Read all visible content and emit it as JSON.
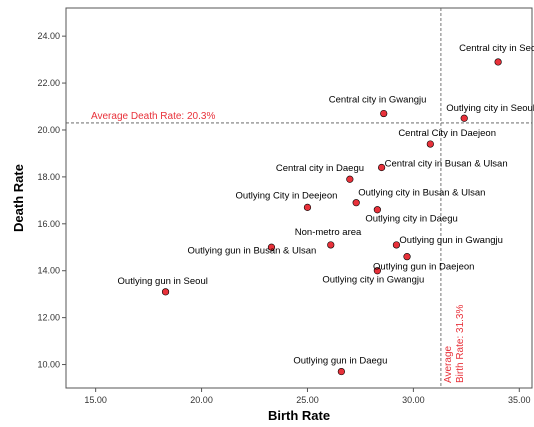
{
  "chart_data": {
    "type": "scatter",
    "xlabel": "Birth Rate",
    "ylabel": "Death Rate",
    "xlim": [
      13.6,
      35.6
    ],
    "ylim": [
      9.0,
      25.2
    ],
    "x_ticks": [
      "15.00",
      "20.00",
      "25.00",
      "30.00",
      "35.00"
    ],
    "y_ticks": [
      "10.00",
      "12.00",
      "14.00",
      "16.00",
      "18.00",
      "20.00",
      "22.00",
      "24.00"
    ],
    "grid": false,
    "marker_color": "#e8313a",
    "reference_color": "#e8313a",
    "points": [
      {
        "label": "Central city in Seoul",
        "x": 34.0,
        "y": 22.9
      },
      {
        "label": "Central city in Gwangju",
        "x": 28.6,
        "y": 20.7
      },
      {
        "label": "Outlying city in Seoul",
        "x": 32.4,
        "y": 20.5
      },
      {
        "label": "Central City in Daejeon",
        "x": 30.8,
        "y": 19.4
      },
      {
        "label": "Central city in Daegu",
        "x": 27.0,
        "y": 17.9
      },
      {
        "label": "Central city in Busan & Ulsan",
        "x": 28.5,
        "y": 18.4
      },
      {
        "label": "Outlying City in Deejeon",
        "x": 25.0,
        "y": 16.7
      },
      {
        "label": "Outlying city in Busan & Ulsan",
        "x": 27.3,
        "y": 16.9
      },
      {
        "label": "Outlying city in Daegu",
        "x": 28.3,
        "y": 16.6
      },
      {
        "label": "Non-metro area",
        "x": 26.1,
        "y": 15.1
      },
      {
        "label": "Outlying gun in Busan & Ulsan",
        "x": 23.3,
        "y": 15.0
      },
      {
        "label": "Outlying gun in Gwangju",
        "x": 29.2,
        "y": 15.1
      },
      {
        "label": "Outlying gun in Daejeon",
        "x": 29.7,
        "y": 14.6
      },
      {
        "label": "Outlying city in Gwangju",
        "x": 28.3,
        "y": 14.0
      },
      {
        "label": "Outlying gun in Seoul",
        "x": 18.3,
        "y": 13.1
      },
      {
        "label": "Outlying gun in Daegu",
        "x": 26.6,
        "y": 9.7
      }
    ],
    "reference_lines": [
      {
        "axis": "y",
        "value": 20.3,
        "label": "Average Death Rate: 20.3%"
      },
      {
        "axis": "x",
        "value": 31.3,
        "label_line1": "Average",
        "label_line2": "Birth Rate: 31.3%"
      }
    ]
  }
}
